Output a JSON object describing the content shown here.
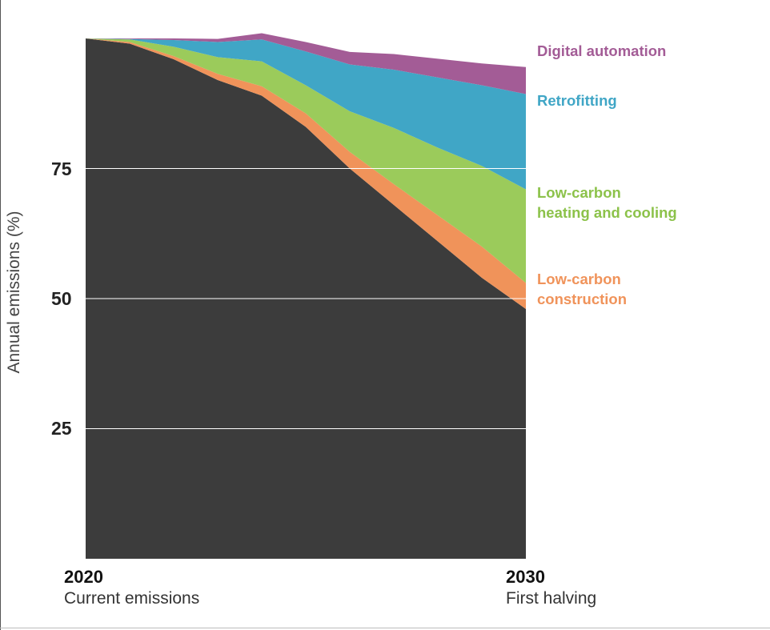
{
  "chart_data": {
    "type": "area",
    "stacked": true,
    "ylabel": "Annual emissions (%)",
    "yticks": [
      {
        "value": 75,
        "label": "75"
      },
      {
        "value": 50,
        "label": "50"
      },
      {
        "value": 25,
        "label": "25"
      }
    ],
    "ylim": [
      0,
      100
    ],
    "grid": true,
    "x_range": [
      2020,
      2030
    ],
    "x_ticks": [
      {
        "year": "2020",
        "sub": "Current emissions"
      },
      {
        "year": "2030",
        "sub": "First halving"
      }
    ],
    "x": [
      2020,
      2021,
      2022,
      2023,
      2024,
      2025,
      2026,
      2027,
      2028,
      2029,
      2030
    ],
    "series": [
      {
        "name": "",
        "color": "#3c3c3c",
        "values": [
          100,
          99,
          96,
          92,
          89,
          83,
          75,
          68,
          61,
          54,
          48
        ]
      },
      {
        "name": "Low-carbon construction",
        "legend": [
          "Low-carbon",
          "construction"
        ],
        "color": "#f0935a",
        "values": [
          0,
          0.3,
          0.6,
          1.2,
          1.8,
          2.6,
          3.2,
          4.0,
          5.0,
          6.0,
          5.0
        ]
      },
      {
        "name": "Low-carbon heating and cooling",
        "legend": [
          "Low-carbon",
          "heating and cooling"
        ],
        "color": "#9bcb5b",
        "values": [
          0,
          0.5,
          1.8,
          3.2,
          4.8,
          5.4,
          7.8,
          10.8,
          13.0,
          15.5,
          18.0
        ]
      },
      {
        "name": "Retrofitting",
        "legend": [
          "Retrofitting"
        ],
        "color": "#40a6c6",
        "values": [
          0,
          0.1,
          1.3,
          2.9,
          4.2,
          6.5,
          9.0,
          11.2,
          13.5,
          15.5,
          18.3
        ]
      },
      {
        "name": "Digital automation",
        "legend": [
          "Digital automation"
        ],
        "color": "#a35c96",
        "values": [
          0,
          0.1,
          0.3,
          0.6,
          1.2,
          1.8,
          2.4,
          3.0,
          3.6,
          4.2,
          5.2
        ]
      }
    ]
  }
}
